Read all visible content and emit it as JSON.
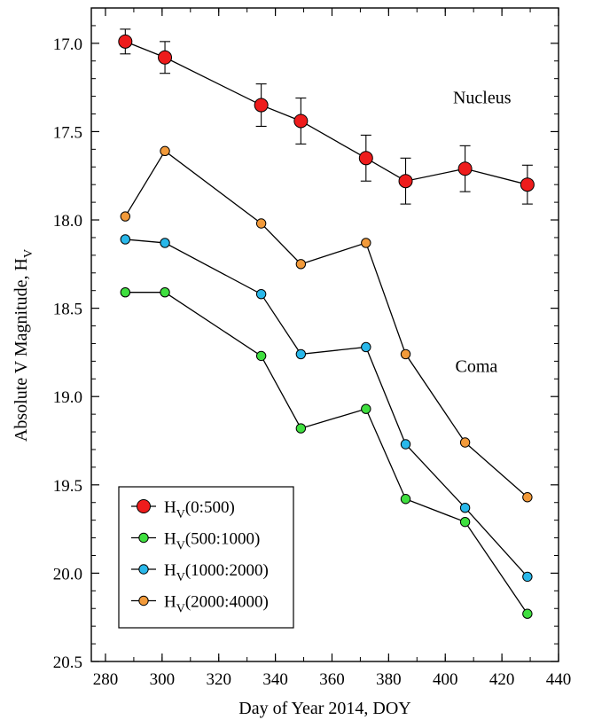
{
  "chart_data": {
    "type": "line",
    "xlabel": "Day of Year 2014, DOY",
    "ylabel": "Absolute V Magnitude, H",
    "ylabel_sub": "V",
    "xlim": [
      275,
      440
    ],
    "ylim": [
      16.8,
      20.5
    ],
    "y_inverted": true,
    "xticks": [
      "280",
      "300",
      "320",
      "340",
      "360",
      "380",
      "400",
      "420",
      "440"
    ],
    "yticks": [
      "17.0",
      "17.5",
      "18.0",
      "18.5",
      "19.0",
      "19.5",
      "20.0",
      "20.5"
    ],
    "grid": false,
    "legend_position": "bottom-left",
    "annotations": [
      {
        "text": "Nucleus",
        "x": 413,
        "y": 17.34
      },
      {
        "text": "Coma",
        "x": 411,
        "y": 18.86
      }
    ],
    "x": [
      287,
      301,
      335,
      349,
      372,
      386,
      407,
      429
    ],
    "series": [
      {
        "name": "0:500",
        "legend_base": "H",
        "legend_sub": "V",
        "legend_rest": "(0:500)",
        "color": "#ee1c1c",
        "marker": "large",
        "values": [
          16.99,
          17.08,
          17.35,
          17.44,
          17.65,
          17.78,
          17.71,
          17.8
        ],
        "errors": [
          0.07,
          0.09,
          0.12,
          0.13,
          0.13,
          0.13,
          0.13,
          0.11
        ]
      },
      {
        "name": "500:1000",
        "legend_base": "H",
        "legend_sub": "V",
        "legend_rest": "(500:1000)",
        "color": "#3fdf3f",
        "marker": "small",
        "values": [
          18.41,
          18.41,
          18.77,
          19.18,
          19.07,
          19.58,
          19.71,
          20.23
        ]
      },
      {
        "name": "1000:2000",
        "legend_base": "H",
        "legend_sub": "V",
        "legend_rest": "(1000:2000)",
        "color": "#29b8ea",
        "marker": "small",
        "values": [
          18.11,
          18.13,
          18.42,
          18.76,
          18.72,
          19.27,
          19.63,
          20.02
        ]
      },
      {
        "name": "2000:4000",
        "legend_base": "H",
        "legend_sub": "V",
        "legend_rest": "(2000:4000)",
        "color": "#f29a3a",
        "marker": "small",
        "values": [
          17.98,
          17.61,
          18.02,
          18.25,
          18.13,
          18.76,
          19.26,
          19.57
        ]
      }
    ]
  }
}
